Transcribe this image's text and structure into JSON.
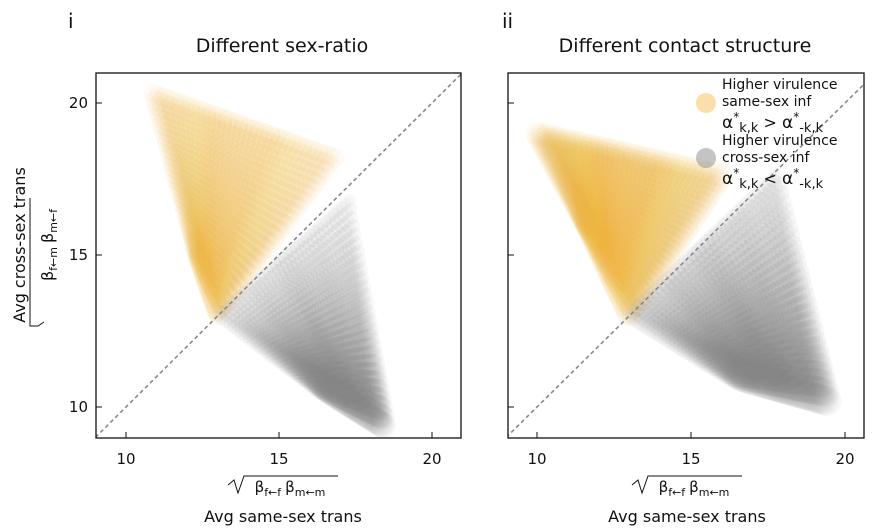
{
  "figure": {
    "ylabel": "Avg cross-sex trans",
    "xlabel": "Avg same-sex trans",
    "ysub_a": "β",
    "ysub_a_idx": "f←m",
    "ysub_b": "β",
    "ysub_b_idx": "m←f",
    "xsub_a": "β",
    "xsub_a_idx": "f←f",
    "xsub_b": "β",
    "xsub_b_idx": "m←m",
    "yticks": [
      "20",
      "15",
      "10"
    ],
    "xticks": [
      "10",
      "15",
      "20"
    ]
  },
  "legend": {
    "same_label_1": "Higher virulence",
    "same_label_2": "same-sex inf",
    "same_alpha": "α",
    "same_star": "*",
    "same_sub1": "k,k",
    "same_op": " > ",
    "same_sub2": "-k,k",
    "cross_label_1": "Higher virulence",
    "cross_label_2": "cross-sex inf",
    "cross_alpha": "α",
    "cross_star": "*",
    "cross_sub1": "k,k",
    "cross_op": " < ",
    "cross_sub2": "-k,k"
  },
  "colors": {
    "same_sex": "#f5b942",
    "cross_sex": "#8a8a8a",
    "diagonal": "#888888"
  },
  "chart_data": [
    {
      "type": "scatter",
      "panel": "i",
      "title": "Different sex-ratio",
      "xlabel": "Avg same-sex trans",
      "ylabel": "Avg cross-sex trans",
      "xlim": [
        9,
        21
      ],
      "ylim": [
        9,
        21
      ],
      "xticks": [
        10,
        15,
        20
      ],
      "yticks": [
        10,
        15,
        20
      ],
      "reference_line": "y = x (dashed)",
      "series": [
        {
          "color": "#f5b942",
          "region": "above diagonal",
          "envelope": [
            [
              10.9,
              20.3
            ],
            [
              16.8,
              18.2
            ],
            [
              13.0,
              13.0
            ],
            [
              12.3,
              15.0
            ]
          ]
        },
        {
          "color": "#8a8a8a",
          "region": "below diagonal",
          "envelope": [
            [
              13.0,
              13.0
            ],
            [
              17.3,
              16.8
            ],
            [
              18.4,
              9.4
            ],
            [
              16.5,
              10.6
            ]
          ]
        }
      ]
    },
    {
      "type": "scatter",
      "panel": "ii",
      "title": "Different contact structure",
      "xlabel": "Avg same-sex trans",
      "ylabel": "Avg cross-sex trans",
      "xlim": [
        9,
        21
      ],
      "ylim": [
        9,
        21
      ],
      "xticks": [
        10,
        15,
        20
      ],
      "yticks": [
        10,
        15,
        20
      ],
      "reference_line": "y = x (dashed)",
      "series": [
        {
          "color": "#f5b942",
          "region": "above diagonal",
          "envelope": [
            [
              10.0,
              19.0
            ],
            [
              16.0,
              17.6
            ],
            [
              13.0,
              13.0
            ],
            [
              11.6,
              16.0
            ]
          ]
        },
        {
          "color": "#8a8a8a",
          "region": "below diagonal",
          "envelope": [
            [
              13.0,
              13.0
            ],
            [
              17.8,
              17.6
            ],
            [
              19.4,
              10.2
            ],
            [
              16.6,
              11.0
            ]
          ]
        }
      ]
    }
  ]
}
